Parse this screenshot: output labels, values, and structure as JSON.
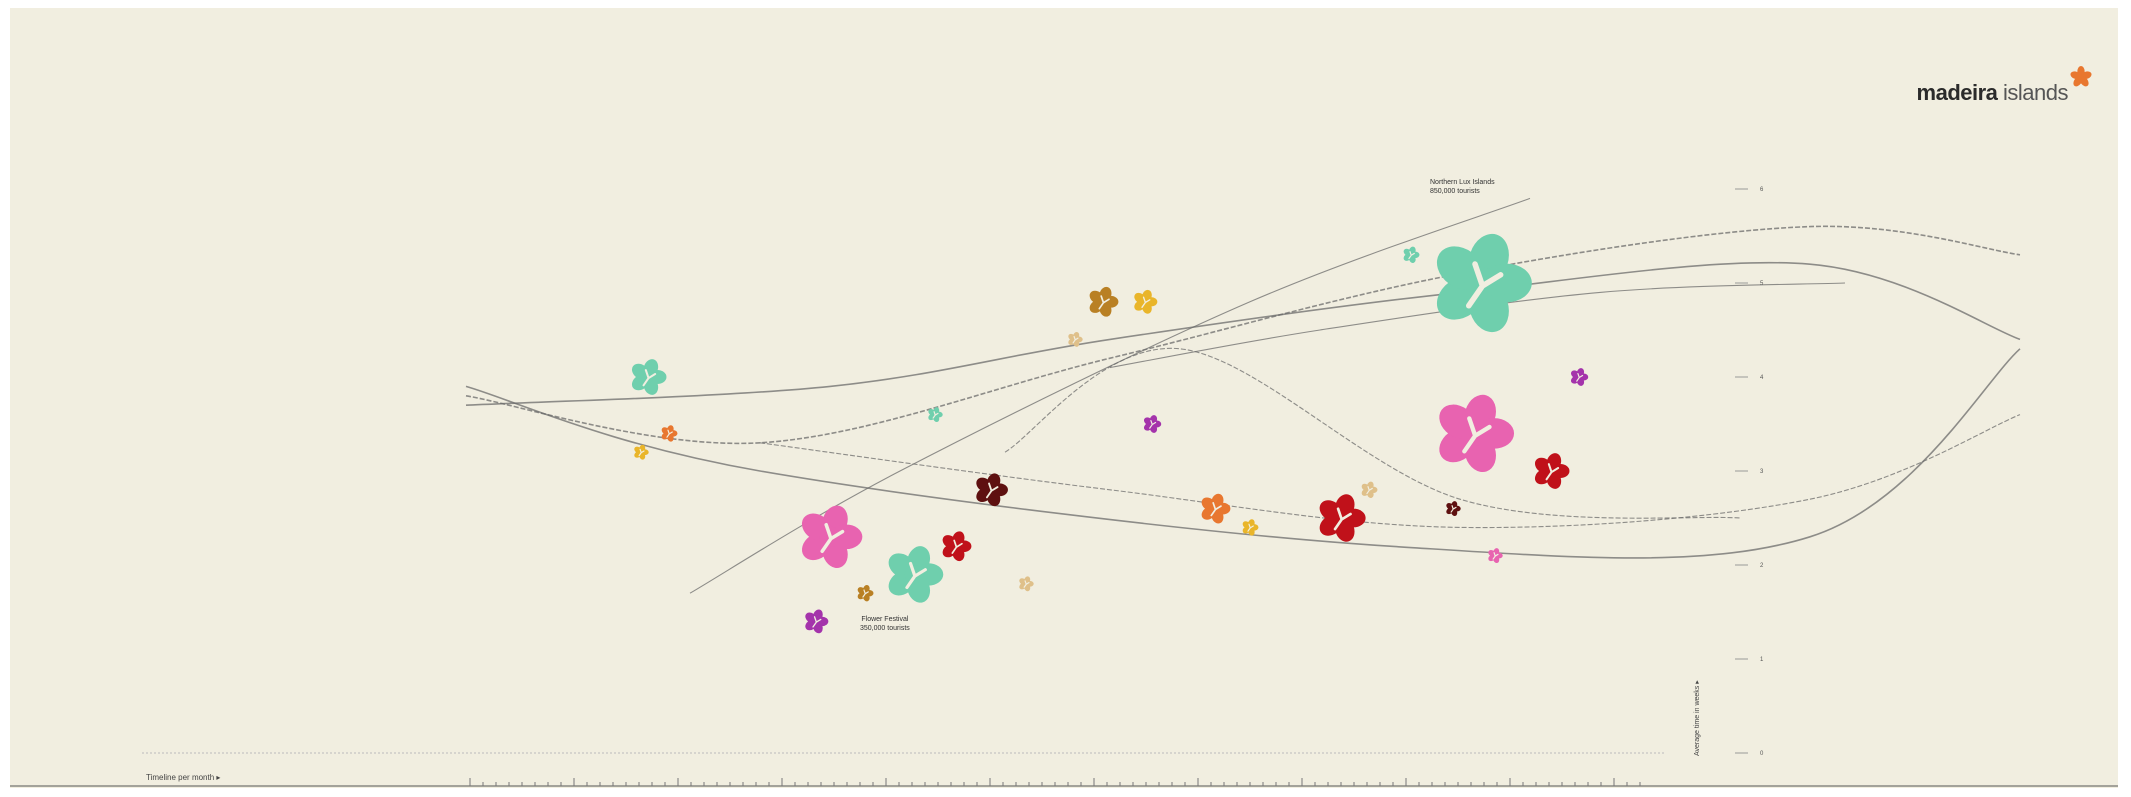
{
  "brand": {
    "name_bold": "madeira",
    "name_light": " islands",
    "logo_icon": "flower-icon"
  },
  "colors": {
    "background": "#f1eee0",
    "mint": "#6fcfad",
    "pink": "#e863b0",
    "red": "#c0111a",
    "darkred": "#5e1010",
    "orange": "#e8772f",
    "yellow": "#e9b52a",
    "gold": "#b98024",
    "purple": "#a433ab",
    "tan": "#dfc08a",
    "line": "#6b6b6b"
  },
  "chart_data": {
    "type": "scatter",
    "title": "",
    "xlabel": "Timeline per month ▸",
    "ylabel": "Average time in weeks ▸",
    "ylim": [
      0,
      6
    ],
    "yticks": [
      "0",
      "1",
      "2",
      "3",
      "4",
      "5",
      "6"
    ],
    "annotations": [
      {
        "text_line1": "Northern Lux Islands",
        "text_line2": "850,000 tourists"
      },
      {
        "text_line1": "Flower Festival",
        "text_line2": "350,000 tourists"
      }
    ],
    "curves": [
      {
        "points": [
          [
            0.8,
            3.9
          ],
          [
            5,
            3.0
          ],
          [
            14,
            2.2
          ],
          [
            20,
            2.3
          ],
          [
            23,
            4.3
          ]
        ]
      },
      {
        "points": [
          [
            0.8,
            3.8
          ],
          [
            5,
            3.3
          ],
          [
            10,
            4.2
          ],
          [
            15,
            5.1
          ],
          [
            20,
            5.6
          ],
          [
            23,
            5.3
          ]
        ]
      },
      {
        "points": [
          [
            0.8,
            3.7
          ],
          [
            6,
            3.9
          ],
          [
            10,
            4.4
          ],
          [
            15,
            4.9
          ],
          [
            20,
            5.2
          ],
          [
            23,
            4.4
          ]
        ]
      },
      {
        "points": [
          [
            5,
            3.3
          ],
          [
            10,
            2.8
          ],
          [
            15,
            2.4
          ],
          [
            20,
            2.7
          ],
          [
            23,
            3.6
          ]
        ]
      },
      {
        "points": [
          [
            4,
            1.7
          ],
          [
            7,
            3.0
          ],
          [
            12,
            4.8
          ],
          [
            16,
            5.9
          ]
        ]
      },
      {
        "points": [
          [
            8.5,
            3.2
          ],
          [
            11,
            4.3
          ],
          [
            15,
            2.7
          ],
          [
            19,
            2.5
          ]
        ]
      },
      {
        "points": [
          [
            10,
            4.1
          ],
          [
            13,
            4.5
          ],
          [
            17,
            4.9
          ],
          [
            20.5,
            5.0
          ]
        ]
      }
    ],
    "points": [
      {
        "x": 3.4,
        "y": 4.0,
        "size": 1.2,
        "color": "mint"
      },
      {
        "x": 3.3,
        "y": 3.2,
        "size": 0.5,
        "color": "yellow"
      },
      {
        "x": 3.7,
        "y": 3.4,
        "size": 0.55,
        "color": "orange"
      },
      {
        "x": 6.0,
        "y": 2.3,
        "size": 2.1,
        "color": "pink"
      },
      {
        "x": 5.8,
        "y": 1.4,
        "size": 0.8,
        "color": "purple"
      },
      {
        "x": 6.5,
        "y": 1.7,
        "size": 0.55,
        "color": "gold"
      },
      {
        "x": 7.2,
        "y": 1.9,
        "size": 1.9,
        "color": "mint"
      },
      {
        "x": 7.8,
        "y": 2.2,
        "size": 1.0,
        "color": "red"
      },
      {
        "x": 8.3,
        "y": 2.8,
        "size": 1.1,
        "color": "darkred"
      },
      {
        "x": 8.8,
        "y": 1.8,
        "size": 0.5,
        "color": "tan"
      },
      {
        "x": 7.5,
        "y": 3.6,
        "size": 0.5,
        "color": "mint"
      },
      {
        "x": 9.5,
        "y": 4.4,
        "size": 0.5,
        "color": "tan"
      },
      {
        "x": 9.9,
        "y": 4.8,
        "size": 1.0,
        "color": "gold"
      },
      {
        "x": 10.5,
        "y": 4.8,
        "size": 0.8,
        "color": "yellow"
      },
      {
        "x": 10.6,
        "y": 3.5,
        "size": 0.6,
        "color": "purple"
      },
      {
        "x": 11.5,
        "y": 2.6,
        "size": 1.0,
        "color": "orange"
      },
      {
        "x": 12.0,
        "y": 2.4,
        "size": 0.55,
        "color": "yellow"
      },
      {
        "x": 13.3,
        "y": 2.5,
        "size": 1.6,
        "color": "red"
      },
      {
        "x": 13.7,
        "y": 2.8,
        "size": 0.55,
        "color": "tan"
      },
      {
        "x": 14.3,
        "y": 5.3,
        "size": 0.55,
        "color": "mint"
      },
      {
        "x": 15.3,
        "y": 5.0,
        "size": 3.3,
        "color": "mint"
      },
      {
        "x": 14.9,
        "y": 2.6,
        "size": 0.5,
        "color": "darkred"
      },
      {
        "x": 15.2,
        "y": 3.4,
        "size": 2.6,
        "color": "pink"
      },
      {
        "x": 15.5,
        "y": 2.1,
        "size": 0.5,
        "color": "pink"
      },
      {
        "x": 16.3,
        "y": 3.0,
        "size": 1.2,
        "color": "red"
      },
      {
        "x": 16.7,
        "y": 4.0,
        "size": 0.6,
        "color": "purple"
      }
    ]
  }
}
